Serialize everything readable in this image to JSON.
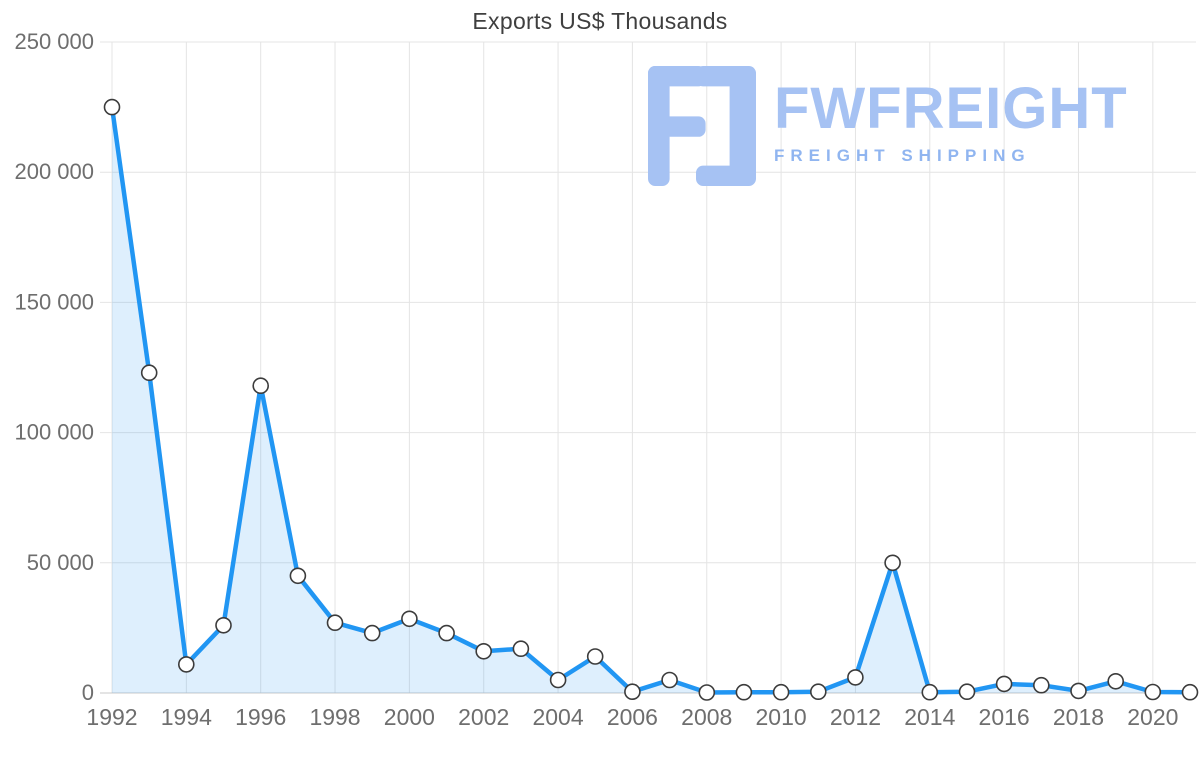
{
  "title": "Exports US$ Thousands",
  "logo": {
    "wordmark": "FWFREIGHT",
    "subtitle": "FREIGHT SHIPPING",
    "icon": "fwfreight-f-glyph",
    "color": "#a6c2f3",
    "subtitle_color": "#90b5f0"
  },
  "colors": {
    "line": "#2196f3",
    "area_fill": "rgba(33,150,243,0.15)",
    "marker_fill": "#ffffff",
    "marker_stroke": "#3c3c3c",
    "grid": "#e4e4e4",
    "axis": "#c9c9c9",
    "title_text": "#3f3f3f",
    "tick_text": "#6e6e6e"
  },
  "chart_data": {
    "type": "line",
    "title": "Exports US$ Thousands",
    "xlabel": "",
    "ylabel": "",
    "x": [
      1992,
      1993,
      1994,
      1995,
      1996,
      1997,
      1998,
      1999,
      2000,
      2001,
      2002,
      2003,
      2004,
      2005,
      2006,
      2007,
      2008,
      2009,
      2010,
      2011,
      2012,
      2013,
      2014,
      2015,
      2016,
      2017,
      2018,
      2019,
      2020,
      2021
    ],
    "values": [
      225000,
      123000,
      11000,
      26000,
      118000,
      45000,
      27000,
      23000,
      28500,
      23000,
      16000,
      17000,
      5000,
      14000,
      500,
      5000,
      200,
      300,
      300,
      500,
      6000,
      50000,
      300,
      500,
      3500,
      3000,
      800,
      4500,
      400,
      300
    ],
    "ylim": [
      0,
      250000
    ],
    "ytick_values": [
      0,
      50000,
      100000,
      150000,
      200000,
      250000
    ],
    "ytick_labels": [
      "0",
      "50 000",
      "100 000",
      "150 000",
      "200 000",
      "250 000"
    ],
    "xtick_values": [
      1992,
      1994,
      1996,
      1998,
      2000,
      2002,
      2004,
      2006,
      2008,
      2010,
      2012,
      2014,
      2016,
      2018,
      2020
    ],
    "xtick_labels": [
      "1992",
      "1994",
      "1996",
      "1998",
      "2000",
      "2002",
      "2004",
      "2006",
      "2008",
      "2010",
      "2012",
      "2014",
      "2016",
      "2018",
      "2020"
    ],
    "grid": true,
    "legend": false,
    "marker": "circle",
    "area_fill": true
  }
}
